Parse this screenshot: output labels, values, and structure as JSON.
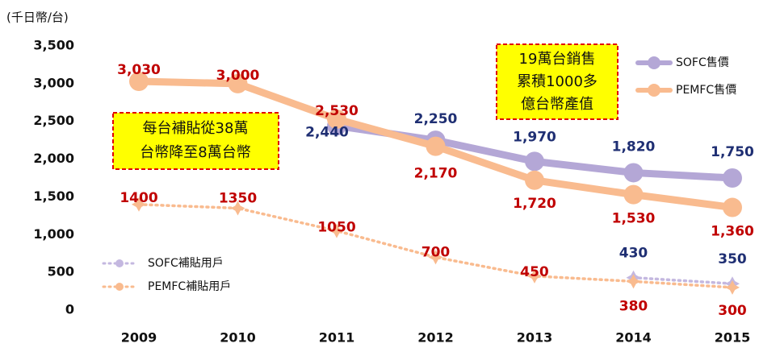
{
  "chart_data": {
    "type": "line",
    "y_axis_label": "(千日幣/台)",
    "categories": [
      "2009",
      "2010",
      "2011",
      "2012",
      "2013",
      "2014",
      "2015"
    ],
    "ylim": [
      0,
      3500
    ],
    "yticks": [
      0,
      500,
      {
        "value": 1000,
        "label": "1,000"
      },
      {
        "value": 1500,
        "label": "1,500"
      },
      {
        "value": 2000,
        "label": "2,000"
      },
      {
        "value": 2500,
        "label": "2,500"
      },
      {
        "value": 3000,
        "label": "3,000"
      },
      {
        "value": 3500,
        "label": "3,500"
      }
    ],
    "series": [
      {
        "name": "SOFC售價",
        "color": "#b4a7d6",
        "label_color": "#1f2f73",
        "dotted": false,
        "values": [
          null,
          null,
          2440,
          2250,
          1970,
          1820,
          1750
        ],
        "value_labels": [
          null,
          null,
          "2,440",
          "2,250",
          "1,970",
          "1,820",
          "1,750"
        ]
      },
      {
        "name": "PEMFC售價",
        "color": "#f9bb8f",
        "label_color": "#c00000",
        "dotted": false,
        "values": [
          3030,
          3000,
          2530,
          2170,
          1720,
          1530,
          1360
        ],
        "value_labels": [
          "3,030",
          "3,000",
          "2,530",
          "2,170",
          "1,720",
          "1,530",
          "1,360"
        ]
      },
      {
        "name": "SOFC補貼用戶",
        "color": "#c4b8e0",
        "label_color": "#1f2f73",
        "dotted": true,
        "values": [
          null,
          null,
          null,
          null,
          null,
          430,
          350
        ]
      },
      {
        "name": "PEMFC補貼用戶",
        "color": "#f9bb8f",
        "label_color": "#c00000",
        "dotted": true,
        "values": [
          1400,
          1350,
          1050,
          700,
          450,
          380,
          300
        ]
      }
    ],
    "annotations": [
      [
        "每台補貼從38萬",
        "台幣降至8萬台幣"
      ],
      [
        "19萬台銷售",
        "累積1000多",
        "億台幣產值"
      ]
    ]
  }
}
